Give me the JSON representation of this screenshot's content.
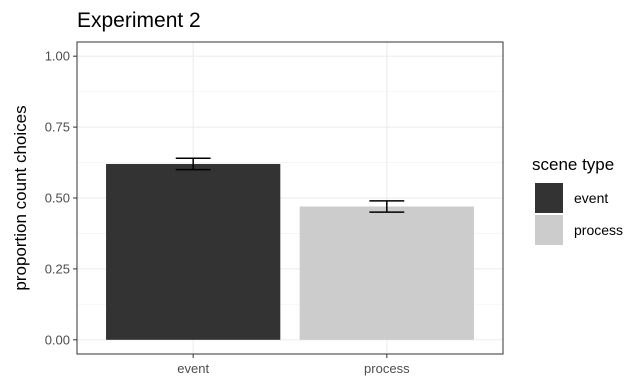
{
  "chart_data": {
    "type": "bar",
    "title": "Experiment 2",
    "xlabel": "",
    "ylabel": "proportion count choices",
    "categories": [
      "event",
      "process"
    ],
    "values": [
      0.62,
      0.47
    ],
    "error_bars": [
      {
        "lower": 0.6,
        "upper": 0.64
      },
      {
        "lower": 0.45,
        "upper": 0.49
      }
    ],
    "ylim": [
      0,
      1
    ],
    "yticks": [
      "0.00",
      "0.25",
      "0.50",
      "0.75",
      "1.00"
    ],
    "grid": true,
    "legend": {
      "title": "scene type",
      "position": "right",
      "entries": [
        {
          "label": "event",
          "color": "#333333"
        },
        {
          "label": "process",
          "color": "#cccccc"
        }
      ]
    },
    "colors": [
      "#333333",
      "#cccccc"
    ]
  }
}
